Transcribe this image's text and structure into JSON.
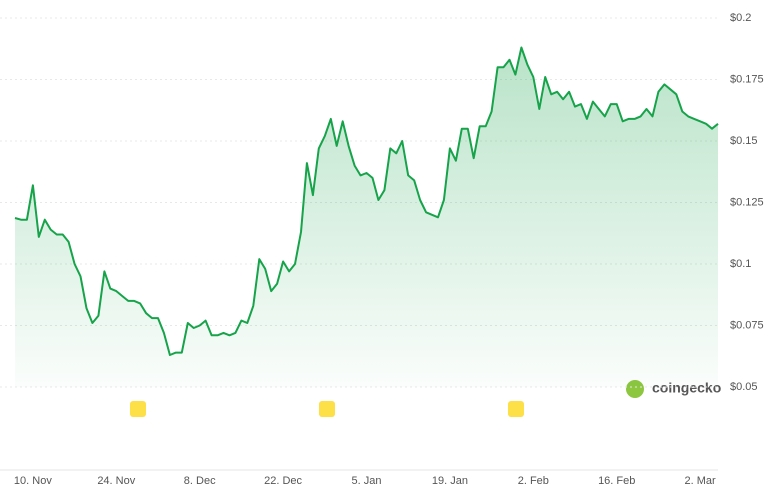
{
  "chart_data": {
    "type": "line",
    "watermark": "coingecko",
    "color": "#16a34a",
    "grid": true,
    "categories": [
      null,
      null,
      null,
      "10. Nov",
      null,
      null,
      null,
      null,
      null,
      null,
      null,
      null,
      null,
      null,
      null,
      null,
      null,
      "24. Nov",
      null,
      null,
      null,
      null,
      null,
      null,
      null,
      null,
      null,
      null,
      null,
      null,
      null,
      "8. Dec",
      null,
      null,
      null,
      null,
      null,
      null,
      null,
      null,
      null,
      null,
      null,
      null,
      null,
      "22. Dec",
      null,
      null,
      null,
      null,
      null,
      null,
      null,
      null,
      null,
      null,
      null,
      null,
      null,
      "5. Jan",
      null,
      null,
      null,
      null,
      null,
      null,
      null,
      null,
      null,
      null,
      null,
      null,
      null,
      "19. Jan",
      null,
      null,
      null,
      null,
      null,
      null,
      null,
      null,
      null,
      null,
      null,
      null,
      null,
      "2. Feb",
      null,
      null,
      null,
      null,
      null,
      null,
      null,
      null,
      null,
      null,
      null,
      null,
      null,
      "16. Feb",
      null,
      null,
      null,
      null,
      null,
      null,
      null,
      null,
      null,
      null,
      null,
      null,
      null,
      "2. Mar",
      null,
      null,
      null
    ],
    "values": [
      0.1187,
      0.118,
      0.118,
      0.132,
      0.111,
      0.118,
      0.114,
      0.112,
      0.112,
      0.109,
      0.1,
      0.095,
      0.082,
      0.076,
      0.079,
      0.097,
      0.09,
      0.089,
      0.087,
      0.085,
      0.085,
      0.084,
      0.08,
      0.078,
      0.078,
      0.072,
      0.063,
      0.064,
      0.064,
      0.076,
      0.074,
      0.075,
      0.077,
      0.071,
      0.071,
      0.072,
      0.071,
      0.072,
      0.077,
      0.076,
      0.083,
      0.102,
      0.098,
      0.089,
      0.092,
      0.101,
      0.097,
      0.1,
      0.113,
      0.141,
      0.128,
      0.147,
      0.152,
      0.159,
      0.148,
      0.158,
      0.148,
      0.14,
      0.136,
      0.137,
      0.135,
      0.126,
      0.13,
      0.147,
      0.145,
      0.15,
      0.136,
      0.134,
      0.126,
      0.121,
      0.12,
      0.119,
      0.126,
      0.147,
      0.142,
      0.155,
      0.155,
      0.143,
      0.156,
      0.156,
      0.162,
      0.18,
      0.18,
      0.183,
      0.177,
      0.188,
      0.181,
      0.176,
      0.163,
      0.176,
      0.169,
      0.17,
      0.167,
      0.17,
      0.164,
      0.165,
      0.159,
      0.166,
      0.163,
      0.16,
      0.165,
      0.165,
      0.158,
      0.159,
      0.159,
      0.16,
      0.163,
      0.16,
      0.17,
      0.173,
      0.171,
      0.169,
      0.162,
      0.16,
      0.159,
      0.158,
      0.157,
      0.155,
      0.157
    ],
    "ylim": [
      0.05,
      0.2
    ],
    "yticks": [
      {
        "value": 0.05,
        "label": "$0.05"
      },
      {
        "value": 0.075,
        "label": "$0.075"
      },
      {
        "value": 0.1,
        "label": "$0.1"
      },
      {
        "value": 0.125,
        "label": "$0.125"
      },
      {
        "value": 0.15,
        "label": "$0.15"
      },
      {
        "value": 0.175,
        "label": "$0.175"
      },
      {
        "value": 0.2,
        "label": "$0.2"
      }
    ]
  }
}
